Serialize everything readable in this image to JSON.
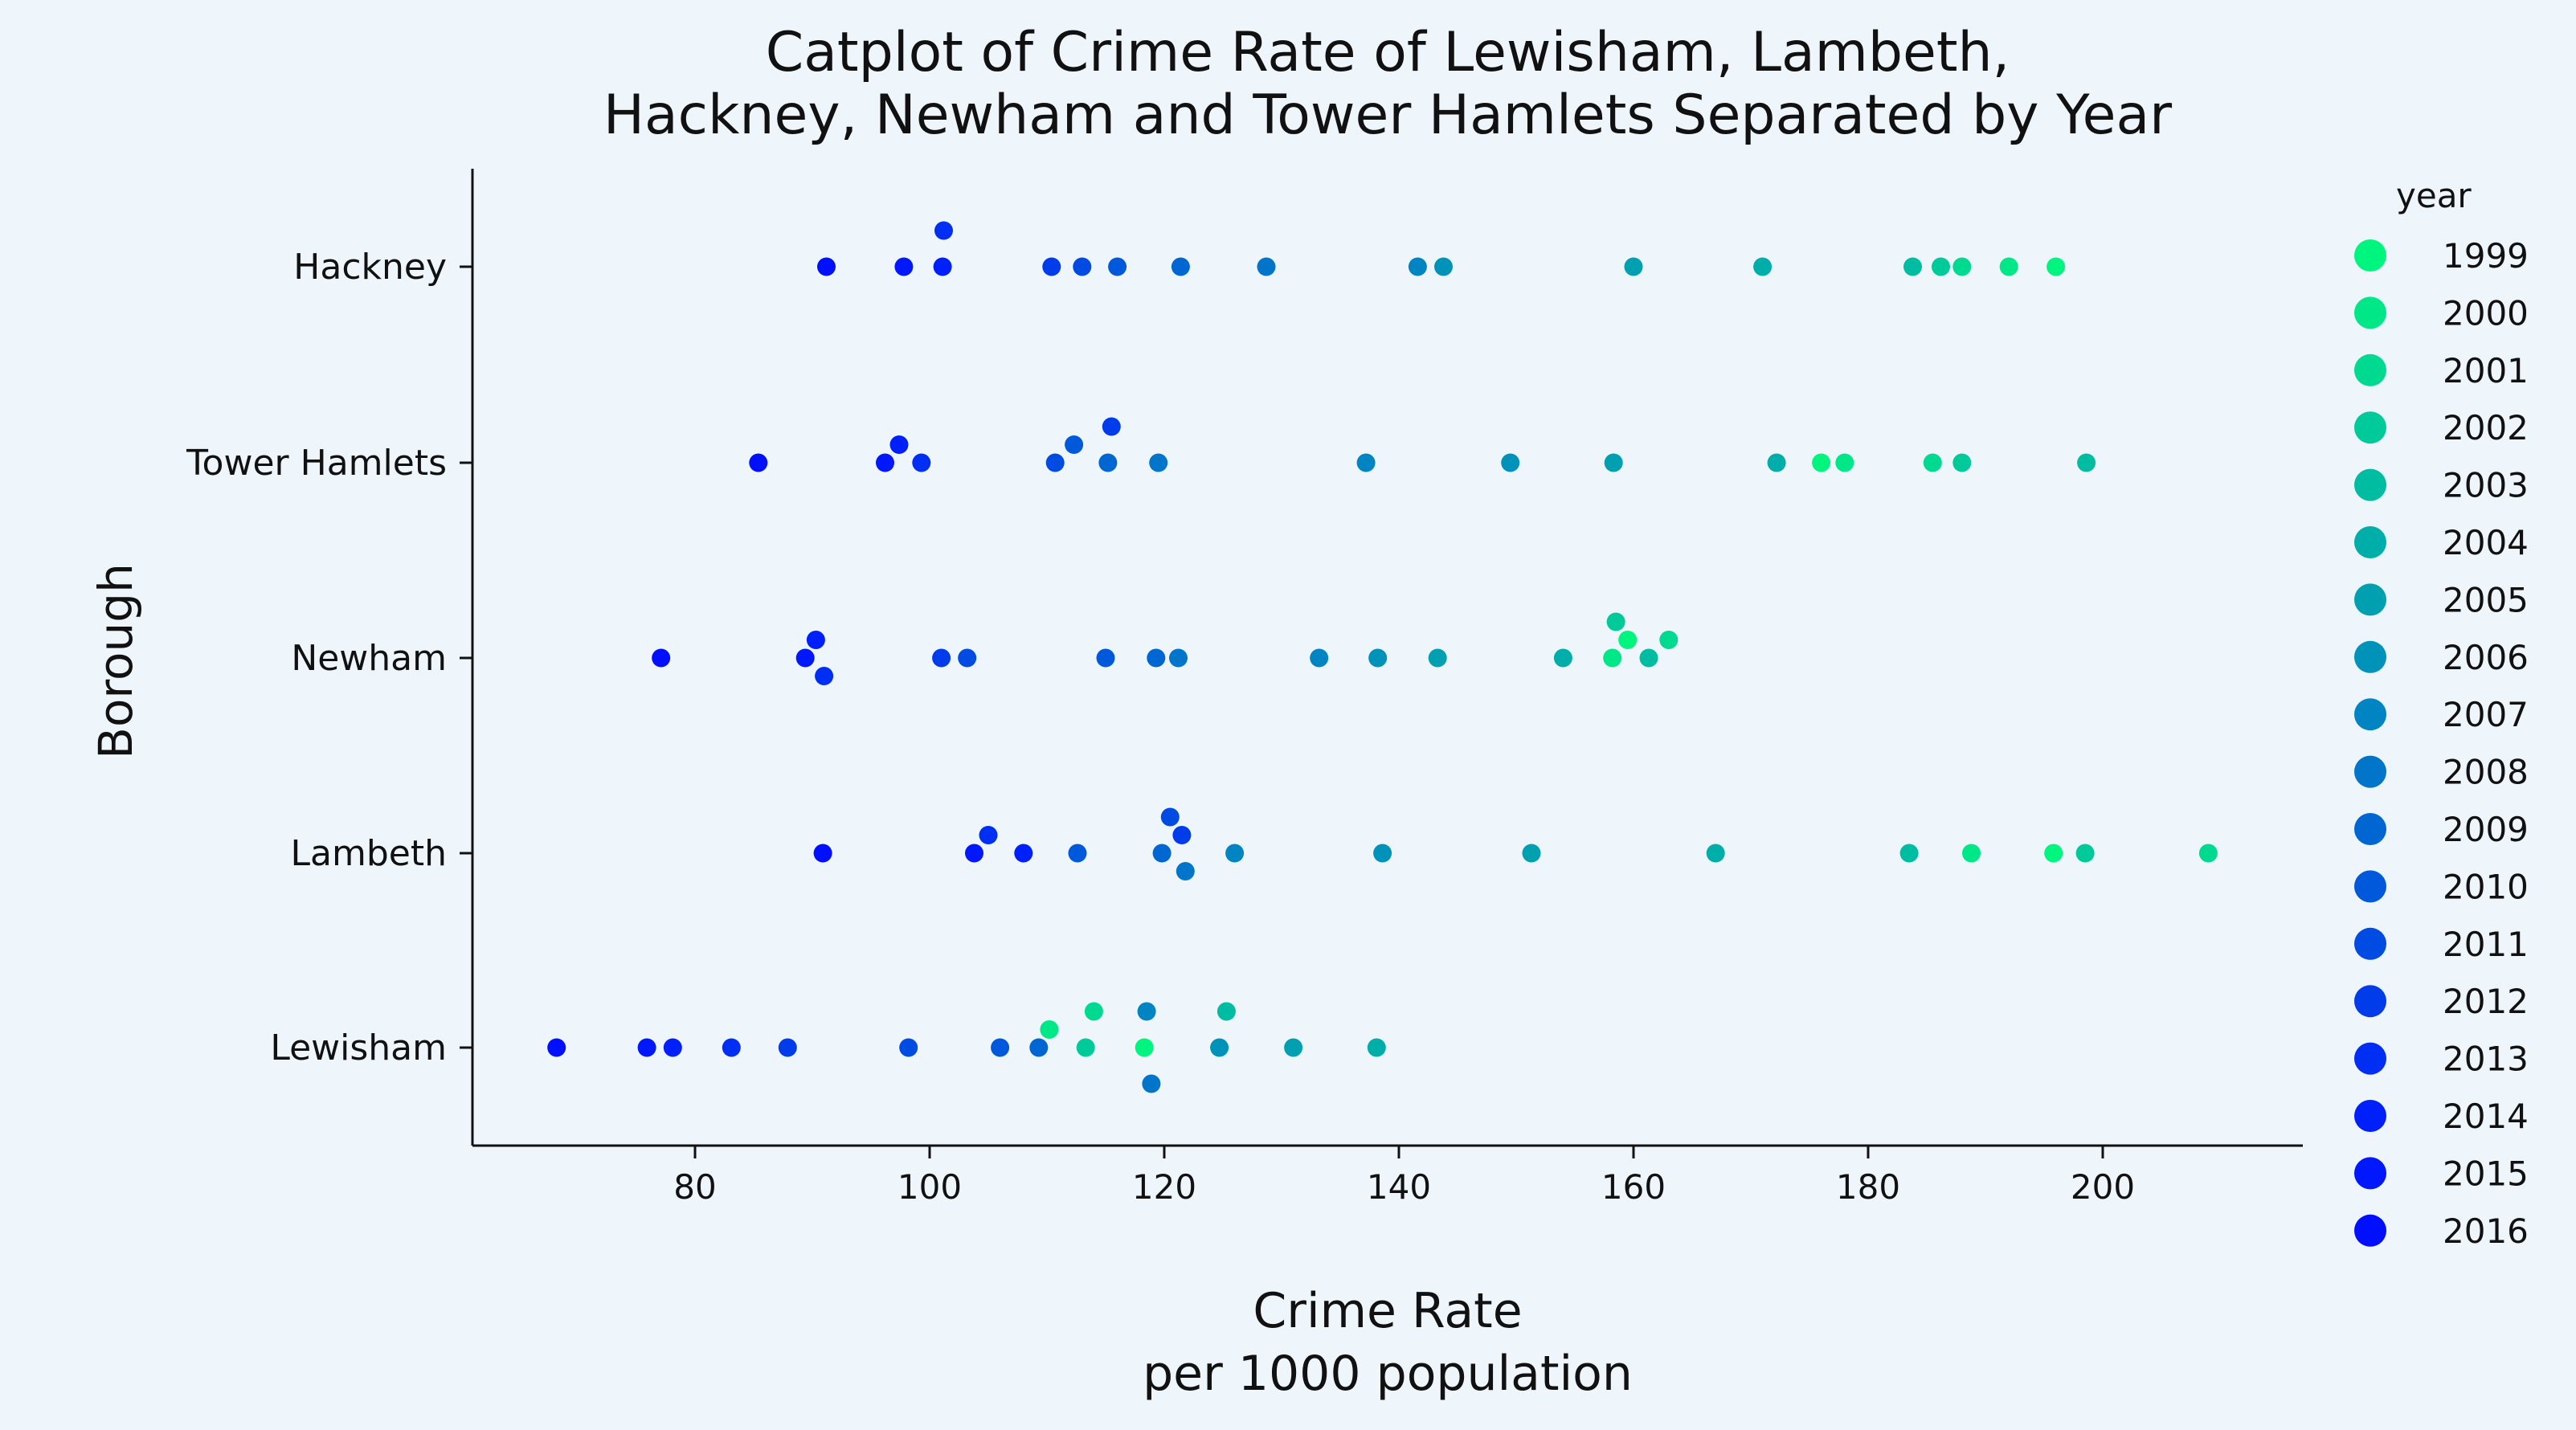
{
  "chart_data": {
    "type": "scatter",
    "title_lines": [
      "Catplot of Crime Rate of Lewisham, Lambeth,",
      "Hackney, Newham and Tower Hamlets Separated by Year"
    ],
    "xlabel_lines": [
      "Crime Rate",
      "per 1000 population"
    ],
    "ylabel": "Borough",
    "xlim": [
      61,
      216
    ],
    "xticks": [
      80,
      100,
      120,
      140,
      160,
      180,
      200
    ],
    "categories": [
      "Hackney",
      "Tower Hamlets",
      "Newham",
      "Lambeth",
      "Lewisham"
    ],
    "legend": {
      "title": "year",
      "placement": "right"
    },
    "grid": false,
    "series": [
      {
        "name": "1999",
        "color": "#00f57f",
        "values": {
          "Hackney": 196,
          "Tower Hamlets": 176,
          "Newham": 159.5,
          "Lambeth": 195.8,
          "Lewisham": 118.3
        }
      },
      {
        "name": "2000",
        "color": "#00e788",
        "values": {
          "Hackney": 192,
          "Tower Hamlets": 178,
          "Newham": 158.2,
          "Lambeth": 188.8,
          "Lewisham": 110.2
        }
      },
      {
        "name": "2001",
        "color": "#00d990",
        "values": {
          "Hackney": 188,
          "Tower Hamlets": 185.5,
          "Newham": 163,
          "Lambeth": 209,
          "Lewisham": 114
        }
      },
      {
        "name": "2002",
        "color": "#00ca99",
        "values": {
          "Hackney": 186.2,
          "Tower Hamlets": 188,
          "Newham": 158.5,
          "Lambeth": 198.5,
          "Lewisham": 113.3
        }
      },
      {
        "name": "2003",
        "color": "#00bca1",
        "values": {
          "Hackney": 183.8,
          "Tower Hamlets": 198.6,
          "Newham": 161.3,
          "Lambeth": 183.5,
          "Lewisham": 125.3
        }
      },
      {
        "name": "2004",
        "color": "#00aea9",
        "values": {
          "Hackney": 171,
          "Tower Hamlets": 172.2,
          "Newham": 154,
          "Lambeth": 167,
          "Lewisham": 138.1
        }
      },
      {
        "name": "2005",
        "color": "#00a0b1",
        "values": {
          "Hackney": 160,
          "Tower Hamlets": 158.3,
          "Newham": 143.3,
          "Lambeth": 151.3,
          "Lewisham": 131
        }
      },
      {
        "name": "2006",
        "color": "#0092b9",
        "values": {
          "Hackney": 143.8,
          "Tower Hamlets": 149.5,
          "Newham": 138.2,
          "Lambeth": 138.6,
          "Lewisham": 124.7
        }
      },
      {
        "name": "2007",
        "color": "#0084c2",
        "values": {
          "Hackney": 141.6,
          "Tower Hamlets": 137.2,
          "Newham": 133.2,
          "Lambeth": 126,
          "Lewisham": 118.5
        }
      },
      {
        "name": "2008",
        "color": "#0075ca",
        "values": {
          "Hackney": 128.7,
          "Tower Hamlets": 119.5,
          "Newham": 121.2,
          "Lambeth": 121.8,
          "Lewisham": 118.9
        }
      },
      {
        "name": "2009",
        "color": "#0067d2",
        "values": {
          "Hackney": 121.4,
          "Tower Hamlets": 115.2,
          "Newham": 119.3,
          "Lambeth": 119.8,
          "Lewisham": 109.3
        }
      },
      {
        "name": "2010",
        "color": "#0059da",
        "values": {
          "Hackney": 116,
          "Tower Hamlets": 112.3,
          "Newham": 115,
          "Lambeth": 112.6,
          "Lewisham": 106
        }
      },
      {
        "name": "2011",
        "color": "#004be2",
        "values": {
          "Hackney": 113,
          "Tower Hamlets": 110.7,
          "Newham": 103.2,
          "Lambeth": 120.5,
          "Lewisham": 98.2
        }
      },
      {
        "name": "2012",
        "color": "#003cea",
        "values": {
          "Hackney": 110.4,
          "Tower Hamlets": 115.5,
          "Newham": 101,
          "Lambeth": 121.5,
          "Lewisham": 87.9
        }
      },
      {
        "name": "2013",
        "color": "#002ef3",
        "values": {
          "Hackney": 101.2,
          "Tower Hamlets": 99.3,
          "Newham": 91,
          "Lambeth": 105,
          "Lewisham": 83.1
        }
      },
      {
        "name": "2014",
        "color": "#0020fb",
        "values": {
          "Hackney": 101.1,
          "Tower Hamlets": 97.4,
          "Newham": 90.3,
          "Lambeth": 108,
          "Lewisham": 78.1
        }
      },
      {
        "name": "2015",
        "color": "#0018fb",
        "values": {
          "Hackney": 97.8,
          "Tower Hamlets": 96.2,
          "Newham": 89.4,
          "Lambeth": 103.8,
          "Lewisham": 75.9
        }
      },
      {
        "name": "2016",
        "color": "#0010ff",
        "values": {
          "Hackney": 91.2,
          "Tower Hamlets": 85.4,
          "Newham": 77.1,
          "Lambeth": 90.9,
          "Lewisham": 68.2
        }
      }
    ]
  }
}
